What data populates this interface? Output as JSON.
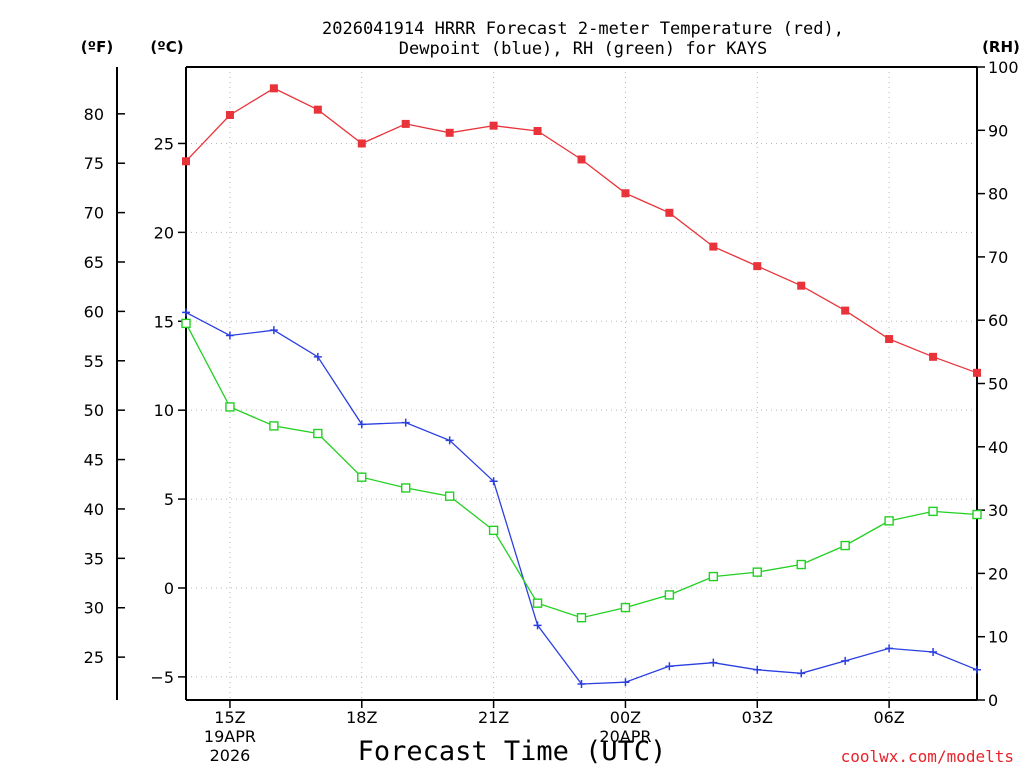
{
  "chart_data": {
    "type": "line",
    "title_line1": "2026041914 HRRR Forecast 2-meter Temperature (red),",
    "title_line2": "Dewpoint (blue), RH (green) for KAYS",
    "xlabel": "Forecast Time (UTC)",
    "credit": "coolwx.com/modelts",
    "unit_f": "(ºF)",
    "unit_c": "(ºC)",
    "unit_rh": "(RH)",
    "x_hours": [
      14,
      15,
      16,
      17,
      18,
      19,
      20,
      21,
      22,
      23,
      24,
      25,
      26,
      27,
      28,
      29,
      30,
      31,
      32
    ],
    "xlim": [
      14,
      32
    ],
    "x_ticks": [
      {
        "hour": 15,
        "label": "15Z",
        "date1": "19APR",
        "date2": "2026"
      },
      {
        "hour": 18,
        "label": "18Z",
        "date1": "",
        "date2": ""
      },
      {
        "hour": 21,
        "label": "21Z",
        "date1": "",
        "date2": ""
      },
      {
        "hour": 24,
        "label": "00Z",
        "date1": "20APR",
        "date2": ""
      },
      {
        "hour": 27,
        "label": "03Z",
        "date1": "",
        "date2": ""
      },
      {
        "hour": 30,
        "label": "06Z",
        "date1": "",
        "date2": ""
      }
    ],
    "y_c": {
      "lim": [
        -6.3,
        29.3
      ],
      "ticks": [
        -5,
        0,
        5,
        10,
        15,
        20,
        25
      ],
      "labels": [
        "−5",
        "0",
        "5",
        "10",
        "15",
        "20",
        "25"
      ]
    },
    "y_f": {
      "ticks": [
        25,
        30,
        35,
        40,
        45,
        50,
        55,
        60,
        65,
        70,
        75,
        80
      ],
      "labels": [
        "25",
        "30",
        "35",
        "40",
        "45",
        "50",
        "55",
        "60",
        "65",
        "70",
        "75",
        "80"
      ]
    },
    "y_rh": {
      "lim": [
        0,
        100
      ],
      "ticks": [
        0,
        10,
        20,
        30,
        40,
        50,
        60,
        70,
        80,
        90,
        100
      ],
      "labels": [
        "0",
        "10",
        "20",
        "30",
        "40",
        "50",
        "60",
        "70",
        "80",
        "90",
        "100"
      ]
    },
    "series": [
      {
        "name": "2-meter Temperature",
        "axis": "c",
        "color": "#e8333a",
        "marker": "square-filled",
        "values": [
          24.0,
          26.6,
          28.1,
          26.9,
          25.0,
          26.1,
          25.6,
          26.0,
          25.7,
          24.1,
          22.2,
          21.1,
          19.2,
          18.1,
          17.0,
          15.6,
          14.0,
          13.0,
          12.1
        ]
      },
      {
        "name": "Dewpoint",
        "axis": "c",
        "color": "#2a3fe0",
        "marker": "plus",
        "values": [
          15.5,
          14.2,
          14.5,
          13.0,
          9.2,
          9.3,
          8.3,
          6.0,
          -2.1,
          -5.4,
          -5.3,
          -4.4,
          -4.2,
          -4.6,
          -4.8,
          -4.1,
          -3.4,
          -3.6,
          -4.6
        ]
      },
      {
        "name": "RH",
        "axis": "rh",
        "color": "#22d022",
        "marker": "square-open",
        "values": [
          59.5,
          46.3,
          43.3,
          42.1,
          35.2,
          33.5,
          32.2,
          26.8,
          15.3,
          13.0,
          14.6,
          16.6,
          19.5,
          20.2,
          21.4,
          24.4,
          28.3,
          29.8,
          29.3
        ]
      }
    ]
  }
}
